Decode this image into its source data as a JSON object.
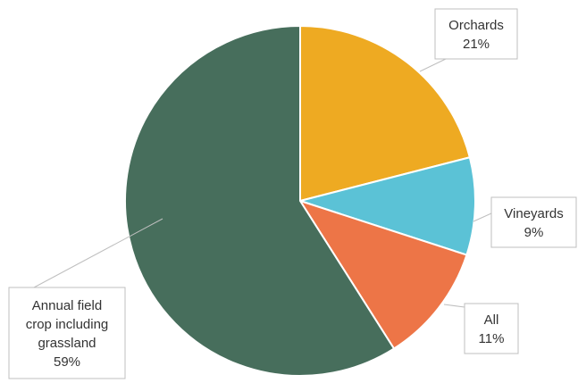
{
  "chart_data": {
    "type": "pie",
    "title": "",
    "slices": [
      {
        "name": "Orchards",
        "value": 21,
        "label_value": "21%",
        "color": "#eeaa22"
      },
      {
        "name": "Vineyards",
        "value": 9,
        "label_value": "9%",
        "color": "#5bc2d6"
      },
      {
        "name": "All",
        "value": 11,
        "label_value": "11%",
        "color": "#ed7547"
      },
      {
        "name": "Annual field crop including grassland",
        "value": 59,
        "label_value": "59%",
        "color": "#476e5c"
      }
    ],
    "start_angle": "12 o'clock",
    "direction": "clockwise",
    "data_labels": "callouts with leader lines"
  }
}
